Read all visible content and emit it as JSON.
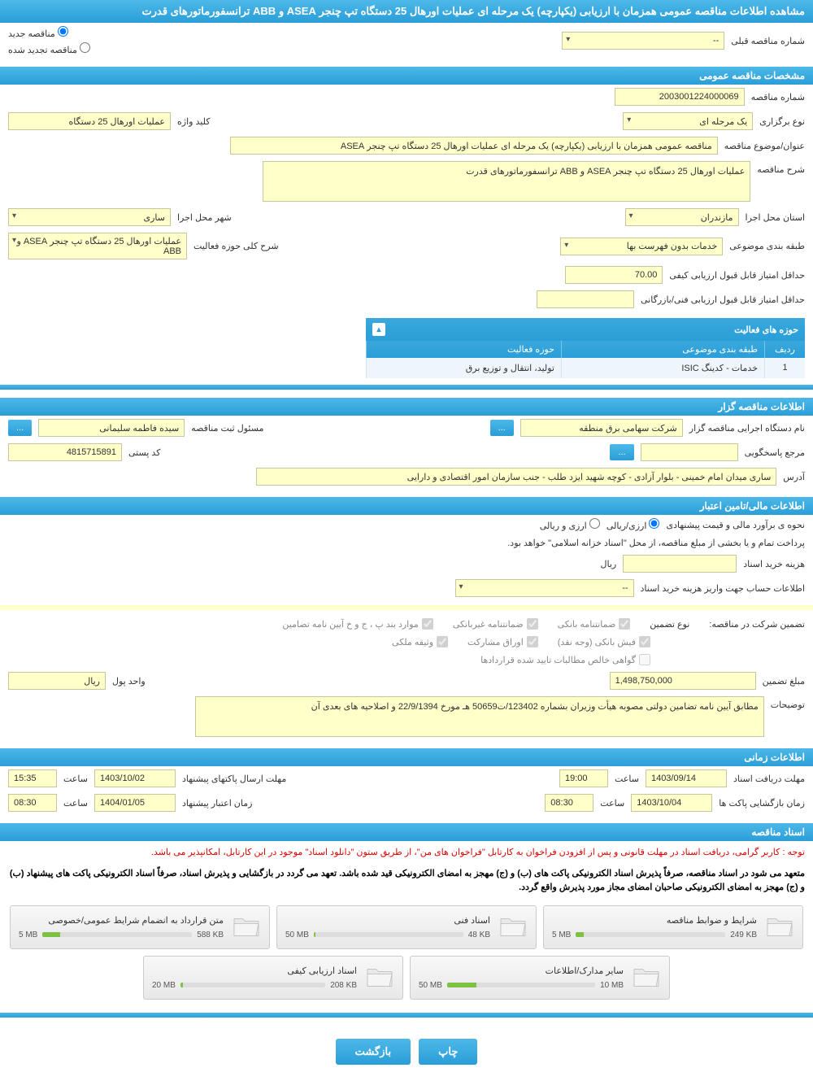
{
  "page_title": "مشاهده اطلاعات مناقصه عمومی همزمان با ارزیابی (یکپارچه) یک مرحله ای عملیات اورهال 25 دستگاه تپ چنجر ASEA و ABB ترانسفورماتورهای قدرت",
  "top_radios": {
    "r1_label": "مناقصه جدید",
    "r2_label": "مناقصه تجدید شده"
  },
  "prev_tender": {
    "label": "شماره مناقصه قبلی",
    "value": "--"
  },
  "section_general": "مشخصات مناقصه عمومی",
  "general": {
    "tender_no_label": "شماره مناقصه",
    "tender_no": "2003001224000069",
    "holding_type_label": "نوع برگزاری",
    "holding_type": "یک مرحله ای",
    "keyword_label": "کلید واژه",
    "keyword": "عملیات اورهال 25 دستگاه",
    "subject_label": "عنوان/موضوع مناقصه",
    "subject": "مناقصه عمومی همزمان با ارزیابی (یکپارچه) یک مرحله ای عملیات اورهال 25 دستگاه تپ چنجر ASEA",
    "desc_label": "شرح مناقصه",
    "desc": "عملیات اورهال 25 دستگاه تپ چنجر ASEA و ABB ترانسفورماتورهای قدرت",
    "province_label": "استان محل اجرا",
    "province": "مازندران",
    "city_label": "شهر محل اجرا",
    "city": "ساری",
    "category_label": "طبقه بندی موضوعی",
    "category": "خدمات بدون فهرست بها",
    "activity_scope_label": "شرح کلی حوزه فعالیت",
    "activity_scope": "عملیات اورهال 25 دستگاه تپ چنجر ASEA و ABB",
    "min_quality_score_label": "حداقل امتیاز قابل قبول ارزیابی کیفی",
    "min_quality_score": "70.00",
    "min_tech_score_label": "حداقل امتیاز قابل قبول ارزیابی فنی/بازرگانی",
    "min_tech_score": ""
  },
  "activity_table": {
    "title": "حوزه های فعالیت",
    "cols": {
      "radif": "ردیف",
      "category": "طبقه بندی موضوعی",
      "scope": "حوزه فعالیت"
    },
    "row": {
      "radif": "1",
      "category": "خدمات - کدینگ ISIC",
      "scope": "تولید، انتقال و توزیع برق"
    }
  },
  "section_org": "اطلاعات مناقصه گزار",
  "org": {
    "name_label": "نام دستگاه اجرایی مناقصه گزار",
    "name": "شرکت سهامی برق منطقه",
    "btn_more": "...",
    "registrar_label": "مسئول ثبت مناقصه",
    "registrar": "سیده فاطمه سلیمانی",
    "responder_label": "مرجع پاسخگویی",
    "responder": "",
    "postal_label": "کد پستی",
    "postal": "4815715891",
    "address_label": "آدرس",
    "address": "ساری میدان امام خمینی - بلوار آزادی - کوچه شهید ایزد طلب - جنب سازمان امور اقتصادی و دارایی"
  },
  "section_finance": "اطلاعات مالی/تامین اعتبار",
  "finance": {
    "est_mode_label": "نحوه ی برآورد مالی و قیمت پیشنهادی",
    "est_mode_opt1": "ارزی/ریالی",
    "est_mode_opt2": "ارزی و ریالی",
    "note1": "پرداخت تمام و یا بخشی از مبلغ مناقصه، از محل \"اسناد خزانه اسلامی\" خواهد بود.",
    "doc_cost_label": "هزینه خرید اسناد",
    "doc_cost": "",
    "currency_rial": "ریال",
    "account_info_label": "اطلاعات حساب جهت واریز هزینه خرید اسناد",
    "account_info": "--"
  },
  "guarantee": {
    "participate_label": "تضمین شرکت در مناقصه:",
    "type_label": "نوع تضمین",
    "cb1": "ضمانتنامه بانکی",
    "cb2": "ضمانتنامه غیربانکی",
    "cb3": "موارد بند پ ، ج و خ آیین نامه تضامین",
    "cb4": "فیش بانکی (وجه نقد)",
    "cb5": "اوراق مشارکت",
    "cb6": "وثیقه ملکی",
    "cb7": "گواهی خالص مطالبات تایید شده قراردادها",
    "amount_label": "مبلغ تضمین",
    "amount": "1,498,750,000",
    "money_unit_label": "واحد پول",
    "money_unit": "ریال",
    "extra_label": "توضیحات",
    "extra": "مطابق آیین نامه تضامین دولتی مصوبه هیأت وزیران بشماره 123402/ت50659 هـ  مورخ 22/9/1394 و  اصلاحیه های بعدی آن"
  },
  "section_time": "اطلاعات زمانی",
  "time": {
    "receive_label": "مهلت دریافت اسناد",
    "receive_date": "1403/09/14",
    "receive_time_label": "ساعت",
    "receive_time": "19:00",
    "submit_label": "مهلت ارسال پاکتهای پیشنهاد",
    "submit_date": "1403/10/02",
    "submit_time_label": "ساعت",
    "submit_time": "15:35",
    "open_label": "زمان بازگشایی پاکت ها",
    "open_date": "1403/10/04",
    "open_time_label": "ساعت",
    "open_time": "08:30",
    "validity_label": "زمان اعتبار پیشنهاد",
    "validity_date": "1404/01/05",
    "validity_time_label": "ساعت",
    "validity_time": "08:30"
  },
  "section_docs": "اسناد مناقصه",
  "docs_note1": "توجه : کاربر گرامی، دریافت اسناد در مهلت قانونی و پس از افزودن فراخوان به کارتابل \"فراخوان های من\"، از طریق ستون \"دانلود اسناد\" موجود در این کارتابل، امکانپذیر می باشد.",
  "docs_note2": "متعهد می شود در اسناد مناقصه، صرفاً پذیرش اسناد الکترونیکی پاکت های (ب) و (ج) مهجز به امضای الکترونیکی قید شده باشد. تعهد می گردد در بازگشایی و پذیرش اسناد، صرفاً اسناد الکترونیکی پاکت های پیشنهاد (ب) و (ج) مهجز به امضای الکترونیکی صاحبان امضای مجاز مورد پذیرش واقع گردد.",
  "files": [
    {
      "title": "شرایط و ضوابط مناقصه",
      "used": "249 KB",
      "total": "5 MB",
      "pct": 5
    },
    {
      "title": "اسناد فنی",
      "used": "48 KB",
      "total": "50 MB",
      "pct": 1
    },
    {
      "title": "متن قرارداد به انضمام شرایط عمومی/خصوصی",
      "used": "588 KB",
      "total": "5 MB",
      "pct": 12
    },
    {
      "title": "سایر مدارک/اطلاعات",
      "used": "10 MB",
      "total": "50 MB",
      "pct": 20
    },
    {
      "title": "اسناد ارزیابی کیفی",
      "used": "208 KB",
      "total": "20 MB",
      "pct": 2
    }
  ],
  "btn_print": "چاپ",
  "btn_back": "بازگشت"
}
